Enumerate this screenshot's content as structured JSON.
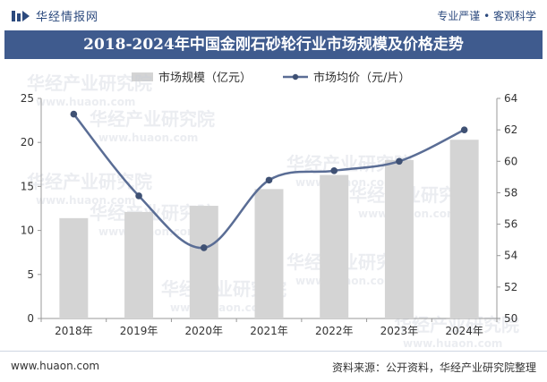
{
  "header": {
    "brand": "华经情报网",
    "slogan": "专业严谨 • 客观科学"
  },
  "colors": {
    "title_band": "#3f5b8e",
    "bar": "#d4d4d4",
    "line": "#5a6d95",
    "marker": "#3f5174"
  },
  "watermark": {
    "cn": "华经产业研究院",
    "url": "www.huaon.com"
  },
  "footer": {
    "url": "www.huaon.com",
    "source": "资料来源：公开资料，华经产业研究院整理"
  },
  "chart_data": {
    "type": "bar",
    "title": "2018-2024年中国金刚石砂轮行业市场规模及价格走势",
    "categories": [
      "2018年",
      "2019年",
      "2020年",
      "2021年",
      "2022年",
      "2023年",
      "2024年"
    ],
    "series": [
      {
        "name": "市场规模（亿元）",
        "type": "bar",
        "axis": "left",
        "values": [
          11.4,
          12.1,
          12.8,
          14.7,
          16.3,
          18.0,
          20.3
        ]
      },
      {
        "name": "市场均价（元/片）",
        "type": "line",
        "axis": "right",
        "values": [
          63.0,
          57.8,
          54.5,
          58.8,
          59.4,
          60.0,
          62.0
        ]
      }
    ],
    "y_left": {
      "min": 0,
      "max": 25,
      "ticks": [
        0,
        5,
        10,
        15,
        20,
        25
      ]
    },
    "y_right": {
      "min": 50,
      "max": 64,
      "ticks": [
        50,
        52,
        54,
        56,
        58,
        60,
        62,
        64
      ]
    },
    "grid": false,
    "legend": "top-center"
  }
}
